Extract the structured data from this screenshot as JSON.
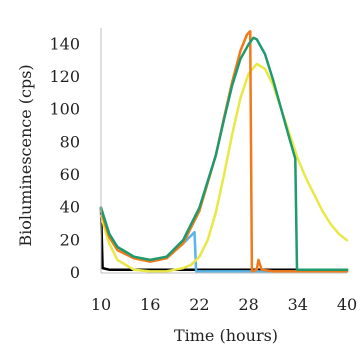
{
  "chart_data": {
    "type": "line",
    "title": "",
    "xlabel": "Time (hours)",
    "ylabel": "Bioluminescence (cps)",
    "xlim": [
      10,
      40
    ],
    "ylim": [
      0,
      150
    ],
    "xticks": [
      10,
      16,
      22,
      28,
      34,
      40
    ],
    "yticks": [
      0,
      20,
      40,
      60,
      80,
      100,
      120,
      140
    ],
    "x_tick_labels": [
      "10",
      "16",
      "22",
      "28",
      "34",
      "40"
    ],
    "y_tick_labels": [
      "0",
      "20",
      "40",
      "60",
      "80",
      "100",
      "120",
      "140"
    ],
    "grid": false,
    "legend": "none",
    "series": [
      {
        "color": "#000000",
        "x": [
          10,
          10.2,
          11,
          13,
          16,
          19,
          22,
          25,
          28,
          31,
          34,
          37,
          40
        ],
        "y": [
          40,
          3,
          2,
          2,
          2,
          2,
          2,
          2,
          2,
          2,
          2,
          2,
          2
        ]
      },
      {
        "color": "#5ab4e8",
        "x": [
          10,
          11,
          12,
          14,
          16,
          18,
          20,
          21.4,
          21.6,
          23,
          26,
          30,
          35,
          40
        ],
        "y": [
          40,
          24,
          16,
          10,
          7,
          10,
          18,
          25,
          1,
          1,
          1,
          1,
          1,
          1
        ]
      },
      {
        "color": "#e8e846",
        "x": [
          10,
          11,
          12,
          14,
          16,
          18,
          19,
          20,
          21,
          22,
          23,
          24,
          25,
          26,
          27,
          28,
          29,
          30,
          31,
          32,
          33,
          34,
          35,
          36,
          37,
          38,
          39,
          40
        ],
        "y": [
          35,
          18,
          8,
          2,
          1,
          1,
          2,
          3,
          5,
          10,
          20,
          37,
          60,
          85,
          107,
          122,
          128,
          125,
          115,
          100,
          85,
          70,
          58,
          48,
          38,
          30,
          24,
          20
        ]
      },
      {
        "color": "#f07a1a",
        "x": [
          10,
          11,
          12,
          14,
          16,
          18,
          20,
          22,
          24,
          25,
          26,
          27,
          27.8,
          28.2,
          28.4,
          29,
          29.2,
          29.6,
          31,
          34,
          37,
          40
        ],
        "y": [
          38,
          22,
          14,
          9,
          7,
          9,
          18,
          38,
          72,
          95,
          117,
          136,
          146,
          148,
          1,
          2,
          8,
          2,
          1,
          1,
          1,
          1
        ]
      },
      {
        "color": "#1f9a6e",
        "x": [
          10,
          11,
          12,
          14,
          16,
          18,
          20,
          22,
          24,
          25,
          26,
          27,
          28,
          28.6,
          29,
          30,
          31,
          32,
          33,
          33.7,
          33.9,
          35,
          37,
          40
        ],
        "y": [
          40,
          24,
          16,
          10,
          8,
          10,
          20,
          40,
          72,
          94,
          115,
          131,
          140,
          144,
          143,
          134,
          118,
          100,
          82,
          70,
          2,
          2,
          2,
          2
        ]
      }
    ]
  }
}
